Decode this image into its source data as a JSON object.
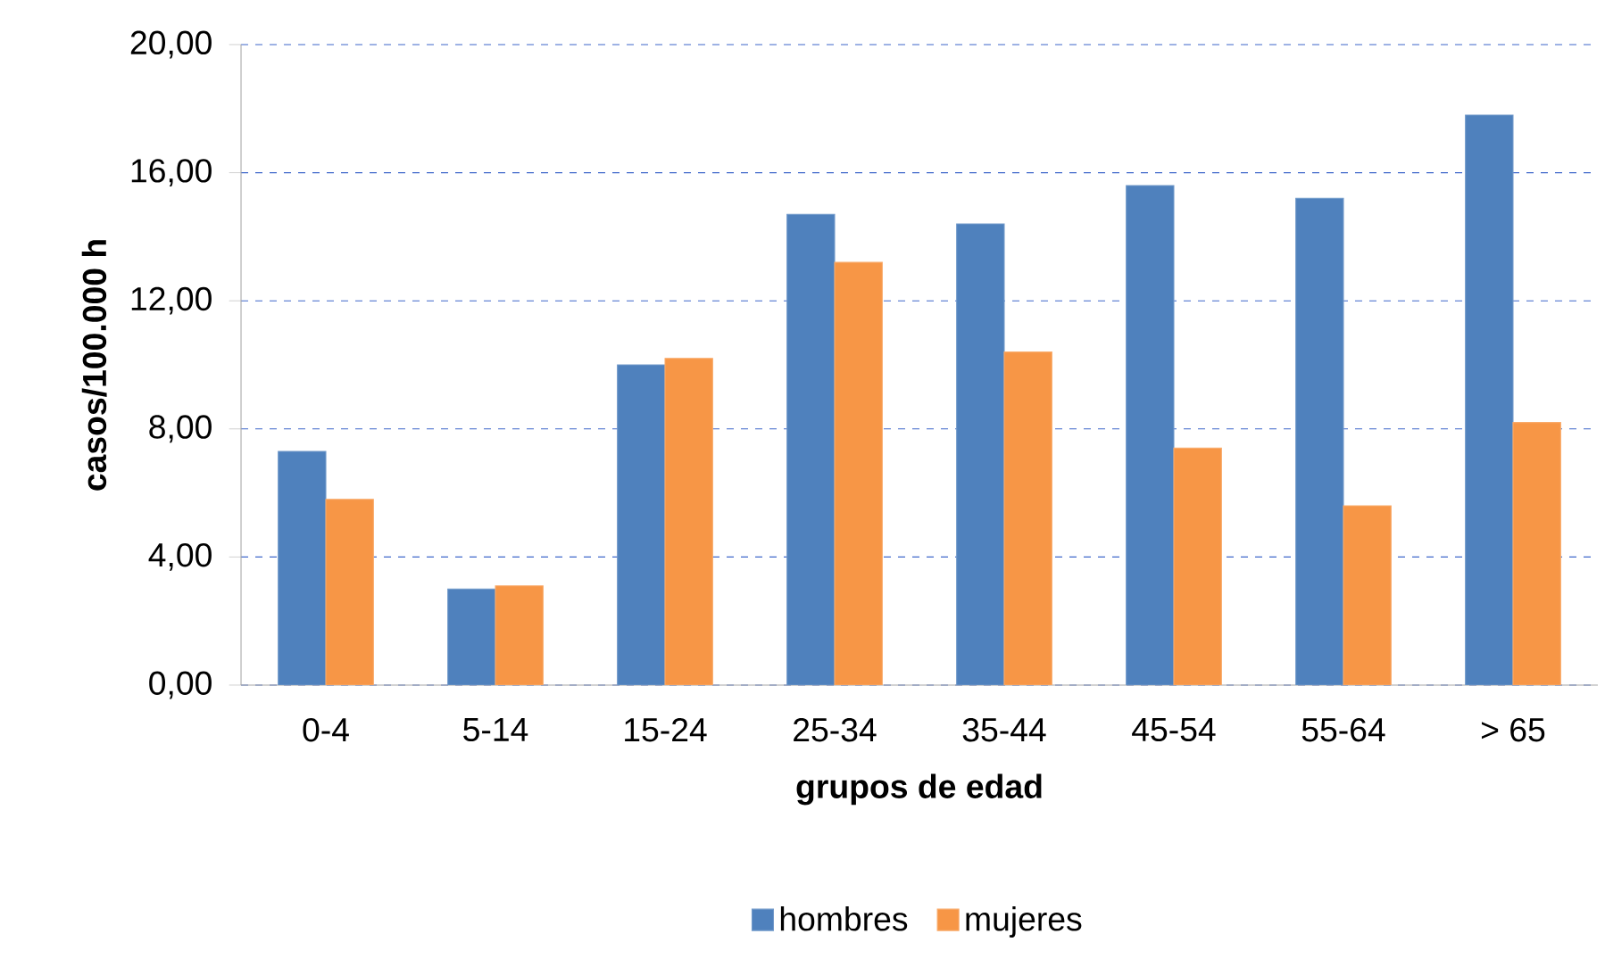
{
  "chart_data": {
    "type": "bar",
    "xlabel": "grupos de edad",
    "ylabel": "casos/100.000 h",
    "categories": [
      "0-4",
      "5-14",
      "15-24",
      "25-34",
      "35-44",
      "45-54",
      "55-64",
      "> 65"
    ],
    "series": [
      {
        "name": "hombres",
        "color": "#4f81bd",
        "values": [
          7.3,
          3.0,
          10.0,
          14.7,
          14.4,
          15.6,
          15.2,
          17.8
        ]
      },
      {
        "name": "mujeres",
        "color": "#f79646",
        "values": [
          5.8,
          3.1,
          10.2,
          13.2,
          10.4,
          7.4,
          5.6,
          8.2
        ]
      }
    ],
    "ylim": [
      0,
      20
    ],
    "yticks": [
      {
        "value": 0,
        "label": "0,00"
      },
      {
        "value": 4,
        "label": "4,00"
      },
      {
        "value": 8,
        "label": "8,00"
      },
      {
        "value": 12,
        "label": "12,00"
      },
      {
        "value": 16,
        "label": "16,00"
      },
      {
        "value": 20,
        "label": "20,00"
      }
    ],
    "grid": "y",
    "legend": "bottom"
  }
}
